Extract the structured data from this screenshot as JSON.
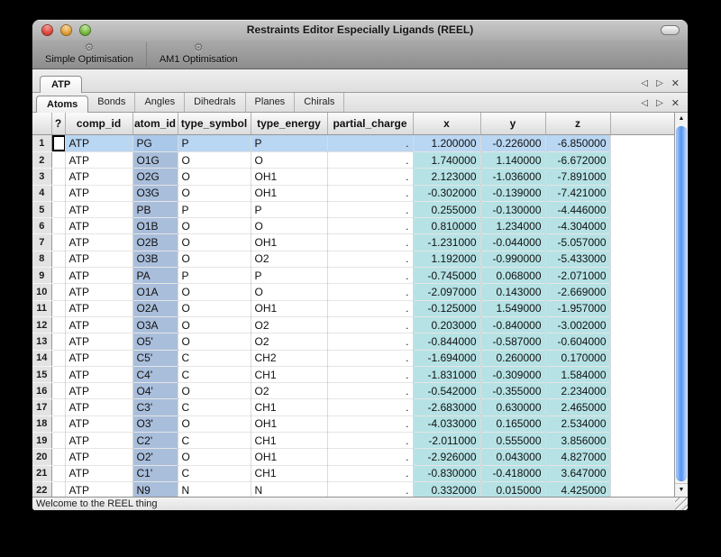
{
  "window": {
    "title": "Restraints Editor Especially Ligands (REEL)"
  },
  "toolbar": {
    "items": [
      {
        "icon": "gear-icon",
        "label": "Simple Optimisation"
      },
      {
        "icon": "gear-icon",
        "label": "AM1 Optimisation"
      }
    ]
  },
  "ligand_tabs": {
    "tabs": [
      {
        "label": "ATP",
        "selected": true
      }
    ],
    "controls": {
      "left": "◁",
      "right": "▷",
      "close": "✕"
    }
  },
  "section_tabs": {
    "tabs": [
      {
        "label": "Atoms",
        "selected": true
      },
      {
        "label": "Bonds",
        "selected": false
      },
      {
        "label": "Angles",
        "selected": false
      },
      {
        "label": "Dihedrals",
        "selected": false
      },
      {
        "label": "Planes",
        "selected": false
      },
      {
        "label": "Chirals",
        "selected": false
      }
    ],
    "controls": {
      "left": "◁",
      "right": "▷",
      "close": "✕"
    }
  },
  "table": {
    "columns": [
      "?",
      "comp_id",
      "atom_id",
      "type_symbol",
      "type_energy",
      "partial_charge",
      "x",
      "y",
      "z"
    ],
    "col_keys": [
      "comp_id",
      "atom_id",
      "type_symbol",
      "type_energy",
      "partial_charge",
      "x",
      "y",
      "z"
    ],
    "selected_row": 1,
    "rows": [
      {
        "n": "1",
        "comp_id": "ATP",
        "atom_id": "PG",
        "type_symbol": "P",
        "type_energy": "P",
        "partial_charge": ".",
        "x": "1.200000",
        "y": "-0.226000",
        "z": "-6.850000"
      },
      {
        "n": "2",
        "comp_id": "ATP",
        "atom_id": "O1G",
        "type_symbol": "O",
        "type_energy": "O",
        "partial_charge": ".",
        "x": "1.740000",
        "y": "1.140000",
        "z": "-6.672000"
      },
      {
        "n": "3",
        "comp_id": "ATP",
        "atom_id": "O2G",
        "type_symbol": "O",
        "type_energy": "OH1",
        "partial_charge": ".",
        "x": "2.123000",
        "y": "-1.036000",
        "z": "-7.891000"
      },
      {
        "n": "4",
        "comp_id": "ATP",
        "atom_id": "O3G",
        "type_symbol": "O",
        "type_energy": "OH1",
        "partial_charge": ".",
        "x": "-0.302000",
        "y": "-0.139000",
        "z": "-7.421000"
      },
      {
        "n": "5",
        "comp_id": "ATP",
        "atom_id": "PB",
        "type_symbol": "P",
        "type_energy": "P",
        "partial_charge": ".",
        "x": "0.255000",
        "y": "-0.130000",
        "z": "-4.446000"
      },
      {
        "n": "6",
        "comp_id": "ATP",
        "atom_id": "O1B",
        "type_symbol": "O",
        "type_energy": "O",
        "partial_charge": ".",
        "x": "0.810000",
        "y": "1.234000",
        "z": "-4.304000"
      },
      {
        "n": "7",
        "comp_id": "ATP",
        "atom_id": "O2B",
        "type_symbol": "O",
        "type_energy": "OH1",
        "partial_charge": ".",
        "x": "-1.231000",
        "y": "-0.044000",
        "z": "-5.057000"
      },
      {
        "n": "8",
        "comp_id": "ATP",
        "atom_id": "O3B",
        "type_symbol": "O",
        "type_energy": "O2",
        "partial_charge": ".",
        "x": "1.192000",
        "y": "-0.990000",
        "z": "-5.433000"
      },
      {
        "n": "9",
        "comp_id": "ATP",
        "atom_id": "PA",
        "type_symbol": "P",
        "type_energy": "P",
        "partial_charge": ".",
        "x": "-0.745000",
        "y": "0.068000",
        "z": "-2.071000"
      },
      {
        "n": "10",
        "comp_id": "ATP",
        "atom_id": "O1A",
        "type_symbol": "O",
        "type_energy": "O",
        "partial_charge": ".",
        "x": "-2.097000",
        "y": "0.143000",
        "z": "-2.669000"
      },
      {
        "n": "11",
        "comp_id": "ATP",
        "atom_id": "O2A",
        "type_symbol": "O",
        "type_energy": "OH1",
        "partial_charge": ".",
        "x": "-0.125000",
        "y": "1.549000",
        "z": "-1.957000"
      },
      {
        "n": "12",
        "comp_id": "ATP",
        "atom_id": "O3A",
        "type_symbol": "O",
        "type_energy": "O2",
        "partial_charge": ".",
        "x": "0.203000",
        "y": "-0.840000",
        "z": "-3.002000"
      },
      {
        "n": "13",
        "comp_id": "ATP",
        "atom_id": "O5'",
        "type_symbol": "O",
        "type_energy": "O2",
        "partial_charge": ".",
        "x": "-0.844000",
        "y": "-0.587000",
        "z": "-0.604000"
      },
      {
        "n": "14",
        "comp_id": "ATP",
        "atom_id": "C5'",
        "type_symbol": "C",
        "type_energy": "CH2",
        "partial_charge": ".",
        "x": "-1.694000",
        "y": "0.260000",
        "z": "0.170000"
      },
      {
        "n": "15",
        "comp_id": "ATP",
        "atom_id": "C4'",
        "type_symbol": "C",
        "type_energy": "CH1",
        "partial_charge": ".",
        "x": "-1.831000",
        "y": "-0.309000",
        "z": "1.584000"
      },
      {
        "n": "16",
        "comp_id": "ATP",
        "atom_id": "O4'",
        "type_symbol": "O",
        "type_energy": "O2",
        "partial_charge": ".",
        "x": "-0.542000",
        "y": "-0.355000",
        "z": "2.234000"
      },
      {
        "n": "17",
        "comp_id": "ATP",
        "atom_id": "C3'",
        "type_symbol": "C",
        "type_energy": "CH1",
        "partial_charge": ".",
        "x": "-2.683000",
        "y": "0.630000",
        "z": "2.465000"
      },
      {
        "n": "18",
        "comp_id": "ATP",
        "atom_id": "O3'",
        "type_symbol": "O",
        "type_energy": "OH1",
        "partial_charge": ".",
        "x": "-4.033000",
        "y": "0.165000",
        "z": "2.534000"
      },
      {
        "n": "19",
        "comp_id": "ATP",
        "atom_id": "C2'",
        "type_symbol": "C",
        "type_energy": "CH1",
        "partial_charge": ".",
        "x": "-2.011000",
        "y": "0.555000",
        "z": "3.856000"
      },
      {
        "n": "20",
        "comp_id": "ATP",
        "atom_id": "O2'",
        "type_symbol": "O",
        "type_energy": "OH1",
        "partial_charge": ".",
        "x": "-2.926000",
        "y": "0.043000",
        "z": "4.827000"
      },
      {
        "n": "21",
        "comp_id": "ATP",
        "atom_id": "C1'",
        "type_symbol": "C",
        "type_energy": "CH1",
        "partial_charge": ".",
        "x": "-0.830000",
        "y": "-0.418000",
        "z": "3.647000"
      },
      {
        "n": "22",
        "comp_id": "ATP",
        "atom_id": "N9",
        "type_symbol": "N",
        "type_energy": "N",
        "partial_charge": ".",
        "x": "0.332000",
        "y": "0.015000",
        "z": "4.425000"
      }
    ]
  },
  "status_bar": {
    "message": "Welcome to the REEL thing"
  },
  "colors": {
    "selected_row": "#b9d6f2",
    "atom_id_column": "#a9bedb",
    "coord_columns": "#b6e2e5",
    "scrollbar_thumb": "#5694f1"
  },
  "icons": {
    "gear": "⚙",
    "scroll_up": "▲",
    "scroll_down": "▼"
  }
}
